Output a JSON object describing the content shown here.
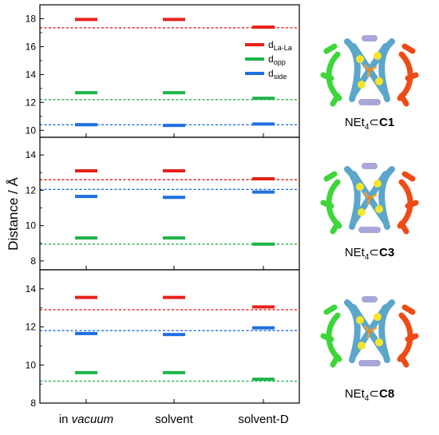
{
  "chart_data": {
    "type": "dot-plot",
    "ylabel": "Distance / Å",
    "categories": [
      {
        "pre": "in ",
        "em": "vacuum"
      },
      {
        "pre": "solvent",
        "em": ""
      },
      {
        "pre": "solvent-D",
        "em": ""
      }
    ],
    "legend": [
      {
        "base": "d",
        "sub": "La-La",
        "color": "#e8211b"
      },
      {
        "base": "d",
        "sub": "opp",
        "color": "#1fb44a"
      },
      {
        "base": "d",
        "sub": "side",
        "color": "#1f6fe0"
      }
    ],
    "colors": {
      "la_la": "#e8211b",
      "opp": "#1fb44a",
      "side": "#1f6fe0"
    },
    "panels": [
      {
        "ylim": [
          9.5,
          19
        ],
        "ticks": [
          10,
          12,
          14,
          16,
          18
        ],
        "molecule": {
          "prefix": "NEt",
          "sub": "4",
          "op": "⊂",
          "bold": "C1"
        },
        "series": [
          {
            "key": "la_la",
            "values": [
              17.95,
              17.95,
              17.4
            ],
            "ref": 17.35
          },
          {
            "key": "opp",
            "values": [
              12.7,
              12.7,
              12.3
            ],
            "ref": 12.2
          },
          {
            "key": "side",
            "values": [
              10.4,
              10.35,
              10.45
            ],
            "ref": 10.4
          }
        ]
      },
      {
        "ylim": [
          7.5,
          15
        ],
        "ticks": [
          8,
          10,
          12,
          14
        ],
        "molecule": {
          "prefix": "NEt",
          "sub": "4",
          "op": "⊂",
          "bold": "C3"
        },
        "series": [
          {
            "key": "la_la",
            "values": [
              13.1,
              13.1,
              12.65
            ],
            "ref": 12.6
          },
          {
            "key": "opp",
            "values": [
              9.3,
              9.3,
              8.95
            ],
            "ref": 8.95
          },
          {
            "key": "side",
            "values": [
              11.65,
              11.6,
              11.9
            ],
            "ref": 12.05
          }
        ]
      },
      {
        "ylim": [
          8,
          15
        ],
        "ticks": [
          8,
          10,
          12,
          14
        ],
        "molecule": {
          "prefix": "NEt",
          "sub": "4",
          "op": "⊂",
          "bold": "C8"
        },
        "series": [
          {
            "key": "la_la",
            "values": [
              13.55,
              13.55,
              13.05
            ],
            "ref": 12.9
          },
          {
            "key": "opp",
            "values": [
              9.6,
              9.6,
              9.25
            ],
            "ref": 9.15
          },
          {
            "key": "side",
            "values": [
              11.65,
              11.6,
              11.95
            ],
            "ref": 11.8
          }
        ]
      }
    ]
  }
}
